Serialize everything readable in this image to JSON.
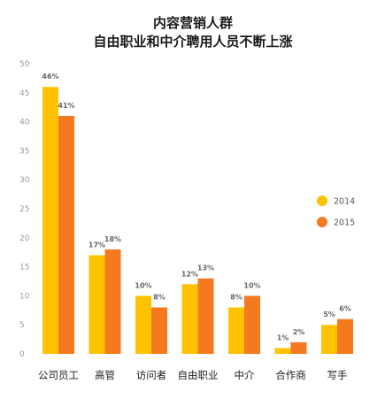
{
  "chart_data": {
    "type": "bar",
    "title": "内容营销人群",
    "subtitle": "自由职业和中介聘用人员不断上涨",
    "categories": [
      "公司员工",
      "高管",
      "访问者",
      "自由职业",
      "中介",
      "合作商",
      "写手"
    ],
    "series": [
      {
        "name": "2014",
        "color": "#FFC200",
        "values": [
          46,
          17,
          10,
          12,
          8,
          1,
          5
        ],
        "labels": [
          "46%",
          "17%",
          "10%",
          "12%",
          "8%",
          "1%",
          "5%"
        ]
      },
      {
        "name": "2015",
        "color": "#F47A20",
        "values": [
          41,
          18,
          8,
          13,
          10,
          2,
          6
        ],
        "labels": [
          "41%",
          "18%",
          "8%",
          "13%",
          "10%",
          "2%",
          "6%"
        ]
      }
    ],
    "yticks": [
      "0",
      "5",
      "10",
      "15",
      "20",
      "25",
      "30",
      "35",
      "40",
      "45",
      "50"
    ],
    "ylim": [
      0,
      50
    ],
    "grid": false,
    "legend": "right"
  }
}
